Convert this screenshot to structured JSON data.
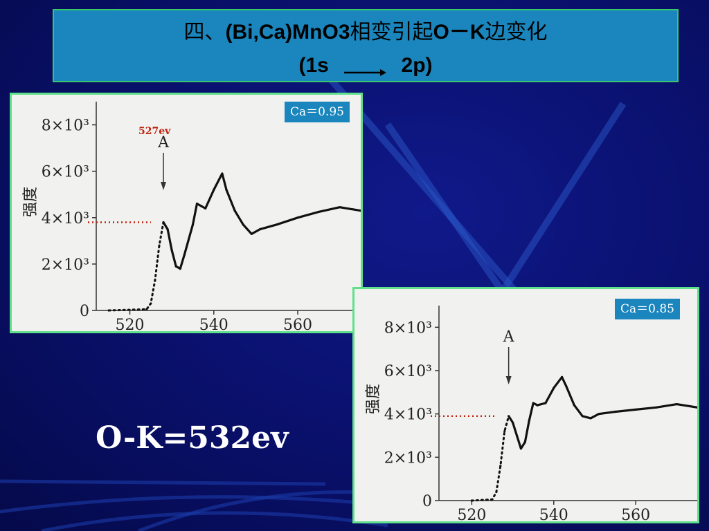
{
  "title": {
    "prefix": "四、",
    "compound": "(Bi,Ca)MnO3",
    "mid": "相变引起",
    "edge": "O－K",
    "suffix": "边变化",
    "line2_from": "(1s",
    "line2_to": "2p)"
  },
  "annotation": {
    "energy": "527ev",
    "ok_energy": "O-K=532ev"
  },
  "colors": {
    "background": "#0a1170",
    "title_box": "#1a86bd",
    "border": "#38c86a",
    "panel_border": "#5fe08a",
    "marker_line": "#c0200e",
    "curve": "#111111"
  },
  "chart_data": [
    {
      "type": "line",
      "label": "Ca＝0.95",
      "ylabel": "强度",
      "xlabel": "",
      "xlim": [
        512,
        575
      ],
      "ylim": [
        0,
        9000
      ],
      "x_ticks": [
        "520",
        "540",
        "560"
      ],
      "y_ticks": [
        "0",
        "2×10³",
        "4×10³",
        "6×10³",
        "8×10³"
      ],
      "peak_marker": "A",
      "x": [
        515,
        524,
        525,
        526,
        527,
        528,
        529,
        530,
        531,
        532,
        533,
        535,
        536,
        537,
        538,
        540,
        542,
        543,
        545,
        547,
        549,
        551,
        555,
        560,
        565,
        570,
        575
      ],
      "y": [
        0,
        50,
        300,
        1300,
        2800,
        3800,
        3500,
        2600,
        1900,
        1800,
        2400,
        3700,
        4600,
        4500,
        4400,
        5200,
        5900,
        5200,
        4300,
        3700,
        3300,
        3500,
        3700,
        4000,
        4250,
        4450,
        4300
      ]
    },
    {
      "type": "line",
      "label": "Ca＝0.85",
      "ylabel": "强度",
      "xlabel": "",
      "xlim": [
        512,
        575
      ],
      "ylim": [
        0,
        9000
      ],
      "x_ticks": [
        "520",
        "540",
        "560"
      ],
      "y_ticks": [
        "0",
        "2×10³",
        "4×10³",
        "6×10³",
        "8×10³"
      ],
      "peak_marker": "A",
      "x": [
        520,
        525,
        526,
        527,
        528,
        529,
        530,
        531,
        532,
        533,
        534,
        535,
        536,
        538,
        540,
        542,
        543,
        545,
        547,
        549,
        551,
        555,
        560,
        565,
        570,
        575
      ],
      "y": [
        0,
        50,
        400,
        1600,
        3200,
        3900,
        3600,
        3000,
        2400,
        2700,
        3700,
        4500,
        4400,
        4500,
        5200,
        5700,
        5300,
        4400,
        3900,
        3800,
        4000,
        4100,
        4200,
        4300,
        4450,
        4300
      ]
    }
  ]
}
